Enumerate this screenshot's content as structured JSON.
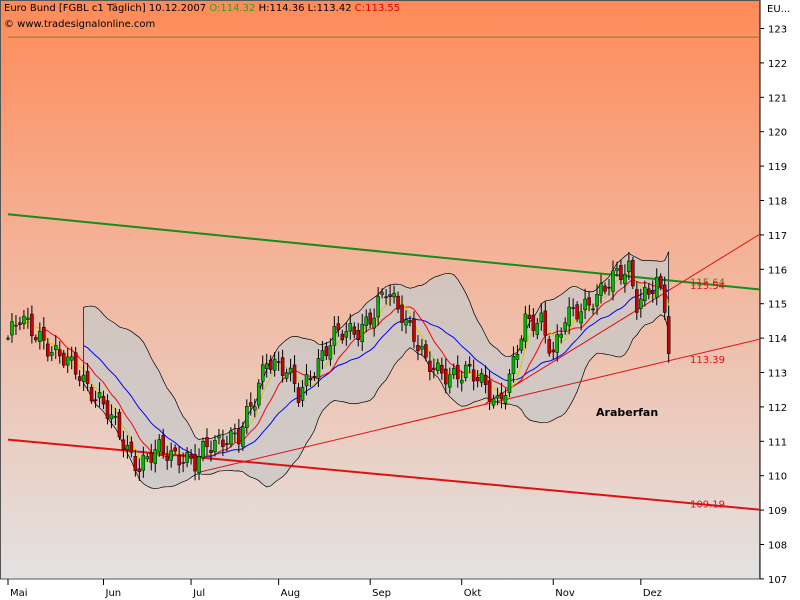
{
  "header": {
    "instrument": "Euro Bund [FGBL c1  Täglich]",
    "date": "10.12.2007",
    "open": "O:114.32",
    "high": "H:114.36",
    "low": "L:113.42",
    "close": "C:113.55"
  },
  "watermark": "© www.tradesignalonline.com",
  "axis_header": "EU...",
  "annotation": "Araberfan",
  "colors": {
    "bg_top": "#ff8a58",
    "bg_bottom": "#e2e2e2",
    "green_line": "#1a8a1a",
    "red_line": "#e01010",
    "upper_green": "#6b8e23",
    "bollinger_fill": "#c8c8c8",
    "ma_blue": "#0000ff",
    "ma_red": "#ff0000",
    "ma_yellow": "#d8c800",
    "candle_up": "#00bb00",
    "candle_down": "#cc0000"
  },
  "chart_data": {
    "type": "candlestick",
    "title": "Euro Bund [FGBL c1  Täglich]",
    "ylim": [
      106.6,
      123.8
    ],
    "y_ticks": [
      107,
      108,
      109,
      110,
      111,
      112,
      113,
      114,
      115,
      116,
      117,
      118,
      119,
      120,
      121,
      122,
      123
    ],
    "x_ticks": [
      "Mai",
      "Jun",
      "Jul",
      "Aug",
      "Sep",
      "Okt",
      "Nov",
      "Dez"
    ],
    "x_tick_index": [
      0,
      24,
      46,
      68,
      91,
      114,
      137,
      159
    ],
    "lines": [
      {
        "name": "Resistance trendline",
        "color": "green",
        "x": [
          0,
          190
        ],
        "y": [
          117.6,
          115.4
        ]
      },
      {
        "name": "Support channel",
        "color": "red",
        "x": [
          0,
          190
        ],
        "y": [
          111.05,
          109.0
        ],
        "label": "109.19"
      },
      {
        "name": "Rising trendline",
        "color": "red",
        "x": [
          48,
          190
        ],
        "y": [
          110.1,
          114.0
        ],
        "label": "113.39"
      },
      {
        "name": "Upper line",
        "color": "olive",
        "x": [
          0,
          190
        ],
        "y": [
          122.75,
          122.75
        ]
      },
      {
        "name": "Channel upper",
        "color": "red",
        "x": [
          120,
          190
        ],
        "y": [
          112.1,
          117.1
        ]
      }
    ],
    "price_labels": [
      {
        "value": "115.64",
        "y": 115.64
      },
      {
        "value": "115.54",
        "y": 115.54
      },
      {
        "value": "113.39",
        "y": 113.39
      },
      {
        "value": "109.19",
        "y": 109.19
      }
    ],
    "anchors": [
      [
        0,
        114.0
      ],
      [
        3,
        114.5
      ],
      [
        8,
        114.1
      ],
      [
        12,
        113.5
      ],
      [
        18,
        113.0
      ],
      [
        24,
        112.0
      ],
      [
        30,
        110.8
      ],
      [
        33,
        110.3
      ],
      [
        38,
        110.7
      ],
      [
        44,
        110.6
      ],
      [
        47,
        110.3
      ],
      [
        50,
        110.8
      ],
      [
        55,
        111.2
      ],
      [
        58,
        111.1
      ],
      [
        62,
        112.2
      ],
      [
        65,
        113.5
      ],
      [
        70,
        113.0
      ],
      [
        73,
        112.3
      ],
      [
        77,
        113.2
      ],
      [
        82,
        114.0
      ],
      [
        88,
        114.3
      ],
      [
        92,
        114.7
      ],
      [
        95,
        115.3
      ],
      [
        99,
        114.8
      ],
      [
        102,
        114.1
      ],
      [
        105,
        113.2
      ],
      [
        108,
        113.0
      ],
      [
        115,
        113.0
      ],
      [
        120,
        112.6
      ],
      [
        123,
        112.2
      ],
      [
        126,
        112.8
      ],
      [
        130,
        114.4
      ],
      [
        134,
        114.6
      ],
      [
        137,
        113.5
      ],
      [
        140,
        114.5
      ],
      [
        145,
        115.0
      ],
      [
        150,
        115.4
      ],
      [
        153,
        115.8
      ],
      [
        156,
        116.1
      ],
      [
        158,
        115.1
      ],
      [
        161,
        115.3
      ],
      [
        163,
        115.5
      ],
      [
        165,
        114.9
      ],
      [
        166,
        113.55
      ]
    ],
    "last_close": 113.55
  }
}
